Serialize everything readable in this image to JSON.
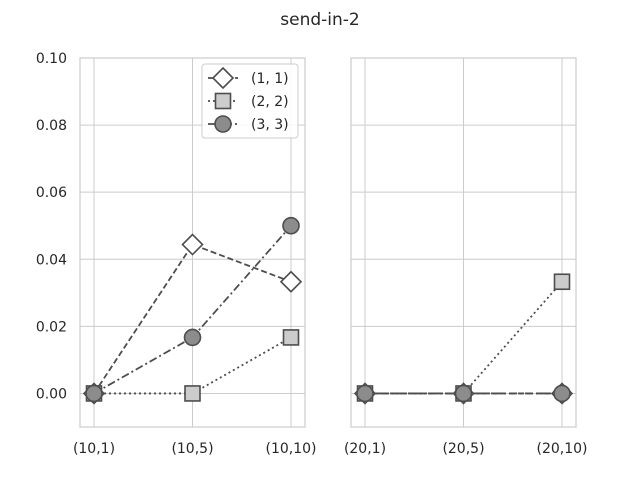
{
  "figure": {
    "title": "send-in-2"
  },
  "colors": {
    "background": "#ffffff",
    "grid": "#cccccc",
    "spine": "#cccccc",
    "line": "#4d4d4d",
    "text": "#262626"
  },
  "legend": {
    "placement": "upper-right of left panel",
    "entries": [
      {
        "label": "(1, 1)",
        "marker": "diamond",
        "linestyle": "dashed",
        "face": "#ffffff"
      },
      {
        "label": "(2, 2)",
        "marker": "square",
        "linestyle": "dotted",
        "face": "#cccccc"
      },
      {
        "label": "(3, 3)",
        "marker": "circle",
        "linestyle": "dashdot",
        "face": "#8c8c8c"
      }
    ]
  },
  "chart_data": [
    {
      "type": "line",
      "categories": [
        "(10,1)",
        "(10,5)",
        "(10,10)"
      ],
      "ylim": [
        -0.01,
        0.1
      ],
      "yticks": [
        0.0,
        0.02,
        0.04,
        0.06,
        0.08,
        0.1
      ],
      "ytick_labels": [
        "0.00",
        "0.02",
        "0.04",
        "0.06",
        "0.08",
        "0.10"
      ],
      "grid": true,
      "legend": true,
      "series": [
        {
          "name": "(1, 1)",
          "values": [
            0.0,
            0.0444,
            0.0333
          ]
        },
        {
          "name": "(2, 2)",
          "values": [
            0.0,
            0.0,
            0.0167
          ]
        },
        {
          "name": "(3, 3)",
          "values": [
            0.0,
            0.0167,
            0.05
          ]
        }
      ]
    },
    {
      "type": "line",
      "categories": [
        "(20,1)",
        "(20,5)",
        "(20,10)"
      ],
      "ylim": [
        -0.01,
        0.1
      ],
      "grid": true,
      "legend": false,
      "series": [
        {
          "name": "(1, 1)",
          "values": [
            0.0,
            0.0,
            0.0
          ]
        },
        {
          "name": "(2, 2)",
          "values": [
            0.0,
            0.0,
            0.0333
          ]
        },
        {
          "name": "(3, 3)",
          "values": [
            0.0,
            0.0,
            0.0
          ]
        }
      ]
    }
  ]
}
